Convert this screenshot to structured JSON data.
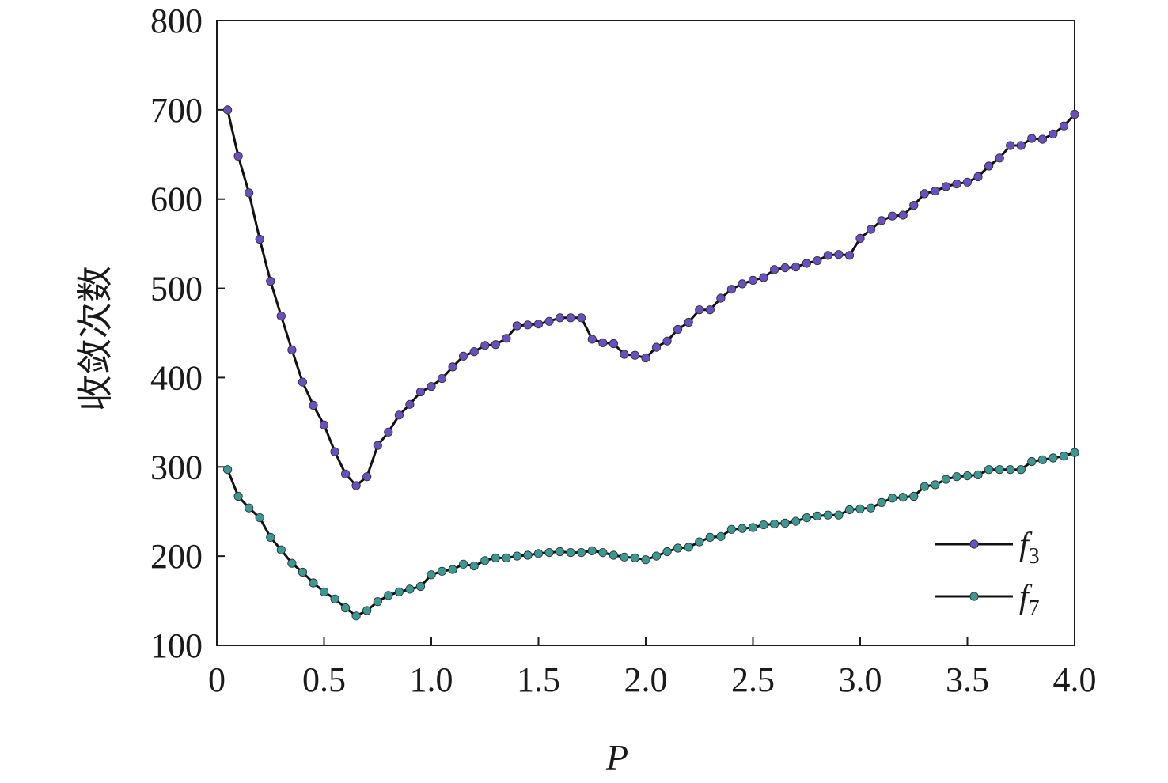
{
  "chart_data": {
    "type": "line",
    "title": "",
    "xlabel": "P",
    "ylabel": "收敛次数",
    "xlim": [
      0,
      4.0
    ],
    "ylim": [
      100,
      800
    ],
    "x_ticks": [
      "0",
      "0.5",
      "1.0",
      "1.5",
      "2.0",
      "2.5",
      "3.0",
      "3.5",
      "4.0"
    ],
    "y_ticks": [
      "100",
      "200",
      "300",
      "400",
      "500",
      "600",
      "700",
      "800"
    ],
    "grid": false,
    "legend_position": "bottom-right",
    "line_color": "#111111",
    "series": [
      {
        "name": "f",
        "subscript": "3",
        "marker_color": "#6a4fc0",
        "x": [
          0.05,
          0.1,
          0.15,
          0.2,
          0.25,
          0.3,
          0.35,
          0.4,
          0.45,
          0.5,
          0.55,
          0.6,
          0.65,
          0.7,
          0.75,
          0.8,
          0.85,
          0.9,
          0.95,
          1.0,
          1.05,
          1.1,
          1.15,
          1.2,
          1.25,
          1.3,
          1.35,
          1.4,
          1.45,
          1.5,
          1.55,
          1.6,
          1.65,
          1.7,
          1.75,
          1.8,
          1.85,
          1.9,
          1.95,
          2.0,
          2.05,
          2.1,
          2.15,
          2.2,
          2.25,
          2.3,
          2.35,
          2.4,
          2.45,
          2.5,
          2.55,
          2.6,
          2.65,
          2.7,
          2.75,
          2.8,
          2.85,
          2.9,
          2.95,
          3.0,
          3.05,
          3.1,
          3.15,
          3.2,
          3.25,
          3.3,
          3.35,
          3.4,
          3.45,
          3.5,
          3.55,
          3.6,
          3.65,
          3.7,
          3.75,
          3.8,
          3.85,
          3.9,
          3.95,
          4.0
        ],
        "y": [
          700,
          648,
          607,
          555,
          508,
          469,
          431,
          395,
          369,
          347,
          317,
          292,
          279,
          289,
          324,
          339,
          358,
          370,
          384,
          390,
          399,
          412,
          424,
          429,
          436,
          437,
          444,
          458,
          459,
          460,
          463,
          467,
          467,
          467,
          443,
          439,
          438,
          426,
          425,
          422,
          434,
          441,
          454,
          462,
          476,
          476,
          489,
          499,
          505,
          509,
          512,
          521,
          523,
          524,
          528,
          531,
          537,
          538,
          537,
          556,
          566,
          576,
          581,
          582,
          593,
          606,
          609,
          614,
          617,
          619,
          625,
          637,
          646,
          660,
          660,
          668,
          667,
          673,
          682,
          695
        ]
      },
      {
        "name": "f",
        "subscript": "7",
        "marker_color": "#3a9a93",
        "x": [
          0.05,
          0.1,
          0.15,
          0.2,
          0.25,
          0.3,
          0.35,
          0.4,
          0.45,
          0.5,
          0.55,
          0.6,
          0.65,
          0.7,
          0.75,
          0.8,
          0.85,
          0.9,
          0.95,
          1.0,
          1.05,
          1.1,
          1.15,
          1.2,
          1.25,
          1.3,
          1.35,
          1.4,
          1.45,
          1.5,
          1.55,
          1.6,
          1.65,
          1.7,
          1.75,
          1.8,
          1.85,
          1.9,
          1.95,
          2.0,
          2.05,
          2.1,
          2.15,
          2.2,
          2.25,
          2.3,
          2.35,
          2.4,
          2.45,
          2.5,
          2.55,
          2.6,
          2.65,
          2.7,
          2.75,
          2.8,
          2.85,
          2.9,
          2.95,
          3.0,
          3.05,
          3.1,
          3.15,
          3.2,
          3.25,
          3.3,
          3.35,
          3.4,
          3.45,
          3.5,
          3.55,
          3.6,
          3.65,
          3.7,
          3.75,
          3.8,
          3.85,
          3.9,
          3.95,
          4.0
        ],
        "y": [
          297,
          267,
          254,
          243,
          221,
          207,
          192,
          182,
          170,
          160,
          152,
          142,
          133,
          139,
          149,
          156,
          160,
          163,
          166,
          179,
          183,
          185,
          191,
          189,
          195,
          198,
          198,
          200,
          201,
          203,
          204,
          205,
          204,
          204,
          206,
          204,
          201,
          199,
          198,
          196,
          200,
          205,
          209,
          210,
          216,
          221,
          222,
          230,
          231,
          232,
          235,
          236,
          237,
          239,
          243,
          245,
          246,
          246,
          252,
          253,
          254,
          260,
          265,
          266,
          267,
          278,
          280,
          286,
          289,
          290,
          291,
          297,
          297,
          297,
          297,
          306,
          308,
          310,
          312,
          316
        ]
      }
    ]
  }
}
